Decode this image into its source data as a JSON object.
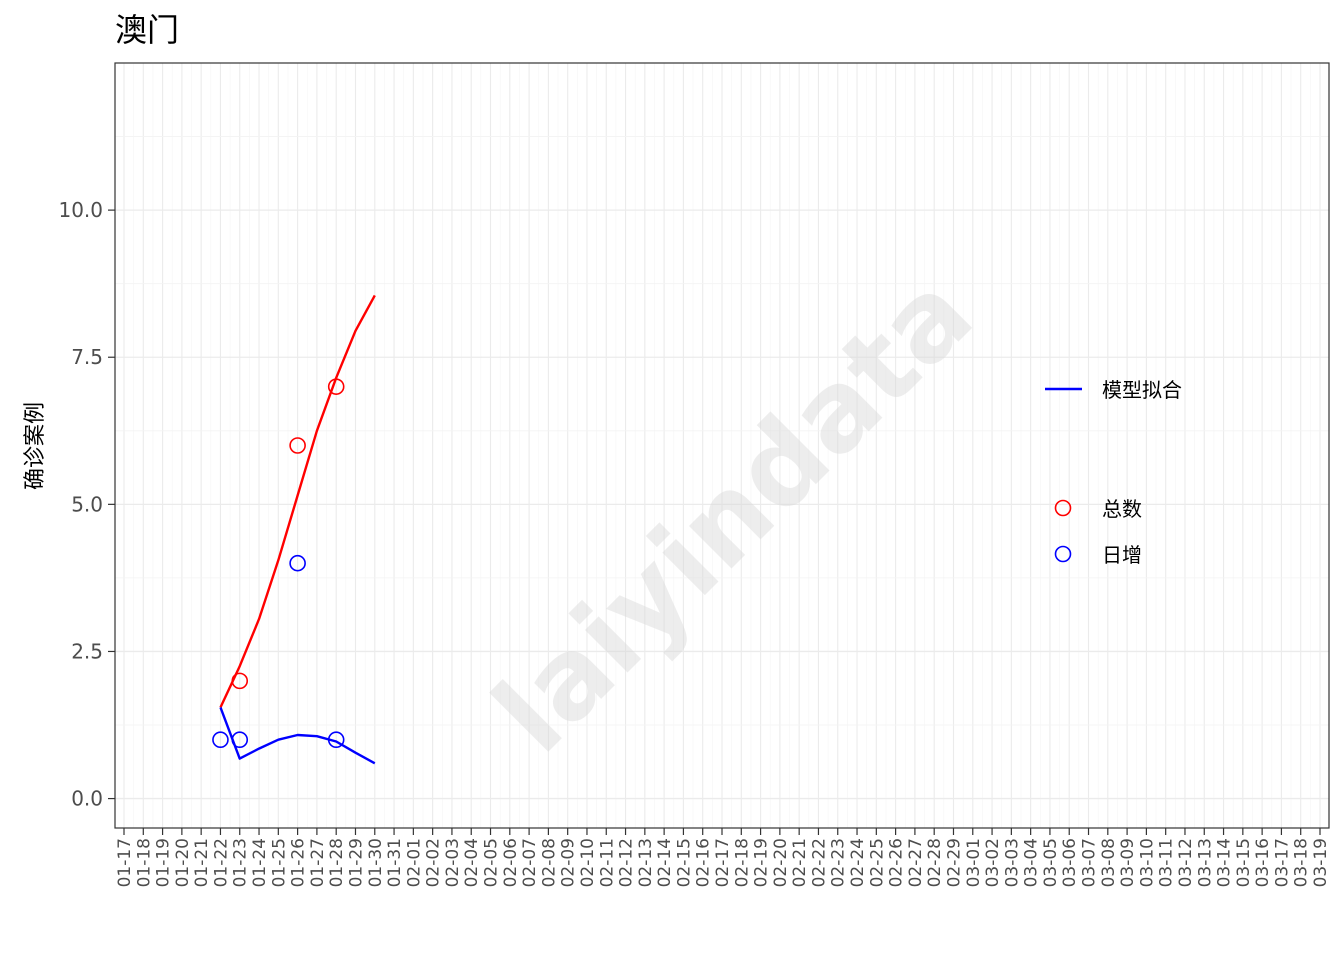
{
  "chart_data": {
    "type": "line",
    "title": "澳门",
    "xlabel": "",
    "ylabel": "确诊案例",
    "watermark": "laiyindata",
    "x_dates": [
      "01-17",
      "01-18",
      "01-19",
      "01-20",
      "01-21",
      "01-22",
      "01-23",
      "01-24",
      "01-25",
      "01-26",
      "01-27",
      "01-28",
      "01-29",
      "01-30",
      "01-31",
      "02-01",
      "02-02",
      "02-03",
      "02-04",
      "02-05",
      "02-06",
      "02-07",
      "02-08",
      "02-09",
      "02-10",
      "02-11",
      "02-12",
      "02-13",
      "02-14",
      "02-15",
      "02-16",
      "02-17",
      "02-18",
      "02-19",
      "02-20",
      "02-21",
      "02-22",
      "02-23",
      "02-24",
      "02-25",
      "02-26",
      "02-27",
      "02-28",
      "02-29",
      "03-01",
      "03-02",
      "03-03",
      "03-04",
      "03-05",
      "03-06",
      "03-07",
      "03-08",
      "03-09",
      "03-10",
      "03-11",
      "03-12",
      "03-13",
      "03-14",
      "03-15",
      "03-16",
      "03-17",
      "03-18",
      "03-19"
    ],
    "yticks": [
      "0.0",
      "2.5",
      "5.0",
      "7.5",
      "10.0"
    ],
    "ylim": [
      -0.5,
      12.5
    ],
    "grid": true,
    "legend_position": "right",
    "legend": {
      "lines": [
        {
          "name": "模型拟合",
          "color": "#0000ff"
        }
      ],
      "points": [
        {
          "name": "总数",
          "color": "#ff0000"
        },
        {
          "name": "日增",
          "color": "#0000ff"
        }
      ]
    },
    "series": [
      {
        "kind": "line",
        "color": "#ff0000",
        "points": [
          [
            "01-22",
            1.55
          ],
          [
            "01-23",
            2.25
          ],
          [
            "01-24",
            3.05
          ],
          [
            "01-25",
            4.05
          ],
          [
            "01-26",
            5.15
          ],
          [
            "01-27",
            6.25
          ],
          [
            "01-28",
            7.15
          ],
          [
            "01-29",
            7.95
          ],
          [
            "01-30",
            8.55
          ]
        ]
      },
      {
        "kind": "line",
        "color": "#0000ff",
        "points": [
          [
            "01-22",
            1.55
          ],
          [
            "01-23",
            0.68
          ],
          [
            "01-24",
            0.85
          ],
          [
            "01-25",
            1.0
          ],
          [
            "01-26",
            1.08
          ],
          [
            "01-27",
            1.06
          ],
          [
            "01-28",
            0.97
          ],
          [
            "01-29",
            0.78
          ],
          [
            "01-30",
            0.6
          ]
        ]
      },
      {
        "kind": "points",
        "color": "#ff0000",
        "points": [
          [
            "01-23",
            2
          ],
          [
            "01-26",
            6
          ],
          [
            "01-28",
            7
          ]
        ]
      },
      {
        "kind": "points",
        "color": "#0000ff",
        "points": [
          [
            "01-22",
            1
          ],
          [
            "01-23",
            1
          ],
          [
            "01-26",
            4
          ],
          [
            "01-28",
            1
          ]
        ]
      }
    ]
  }
}
